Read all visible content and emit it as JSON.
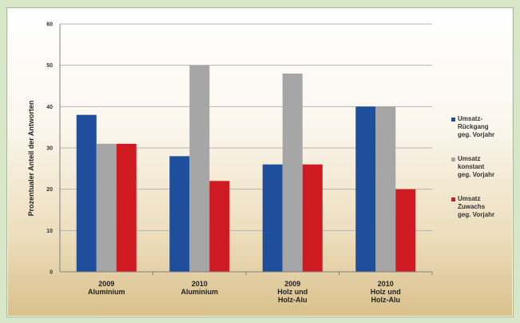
{
  "chart_data": {
    "type": "bar",
    "title": "",
    "ylabel": "Prozentualer Anteil der Antworten",
    "xlabel": "",
    "ylim": [
      0,
      60
    ],
    "yticks": [
      "0",
      "10",
      "20",
      "30",
      "40",
      "50",
      "60"
    ],
    "categories": [
      "2009\nAluminium",
      "2010\nAluminium",
      "2009\nHolz und\nHolz-Alu",
      "2010\nHolz und\nHolz-Alu"
    ],
    "series": [
      {
        "name": "Umsatz-\nRückgang\ngeg. Vorjahr",
        "color": "#1f4e9c",
        "values": [
          38,
          28,
          26,
          40
        ]
      },
      {
        "name": "Umsatz\nkonstant\ngeg. Vorjahr",
        "color": "#a6a6a6",
        "values": [
          31,
          50,
          48,
          40
        ]
      },
      {
        "name": "Umsatz\nZuwachs\ngeg. Vorjahr",
        "color": "#d01a22",
        "values": [
          31,
          22,
          26,
          20
        ]
      }
    ],
    "grid": true,
    "legend_position": "right"
  }
}
